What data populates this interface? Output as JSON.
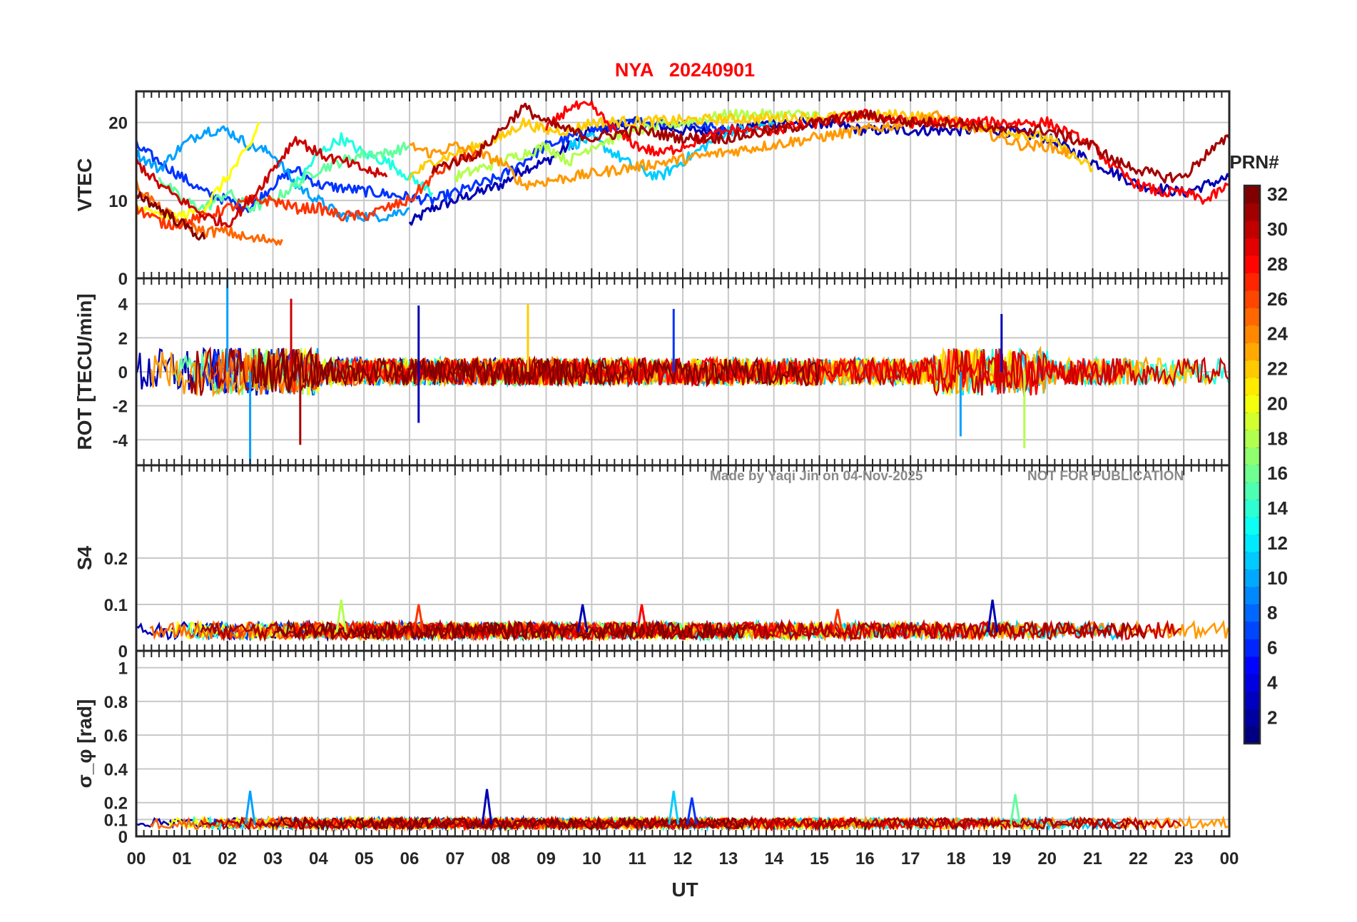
{
  "title": "NYA   20240901",
  "watermark": {
    "made_by": "Made by Yaqi Jin on 04-Nov-2025",
    "notice": "NOT FOR PUBLICATION"
  },
  "xaxis": {
    "label": "UT",
    "range": [
      0,
      24
    ],
    "ticks": [
      "00",
      "01",
      "02",
      "03",
      "04",
      "05",
      "06",
      "07",
      "08",
      "09",
      "10",
      "11",
      "12",
      "13",
      "14",
      "15",
      "16",
      "17",
      "18",
      "19",
      "20",
      "21",
      "22",
      "23",
      "00"
    ]
  },
  "colorbar": {
    "title": "PRN#",
    "colormap": "jet",
    "range": [
      1,
      32
    ],
    "tick_labels": [
      "2",
      "4",
      "6",
      "8",
      "10",
      "12",
      "14",
      "16",
      "18",
      "20",
      "22",
      "24",
      "26",
      "28",
      "30",
      "32"
    ],
    "tick_values": [
      2,
      4,
      6,
      8,
      10,
      12,
      14,
      16,
      18,
      20,
      22,
      24,
      26,
      28,
      30,
      32
    ]
  },
  "chart_data": [
    {
      "type": "line",
      "id": "vtec",
      "ylabel": "VTEC",
      "ylim": [
        0,
        24
      ],
      "yticks": [
        0,
        10,
        20
      ],
      "ytick_labels": [
        "0",
        "10",
        "20"
      ],
      "grid": true,
      "series": [
        {
          "prn": 2,
          "color": "#0000b3",
          "x": [
            6.0,
            6.5,
            7.0,
            7.5,
            8.0,
            8.5,
            9.0,
            9.5,
            10.0,
            11.0,
            12.0,
            13.0,
            14.0,
            15.0,
            16.0,
            17.0,
            18.0,
            19.0,
            20.0,
            21.0,
            22.0,
            23.0,
            24.0
          ],
          "y": [
            7,
            9,
            10,
            11,
            12,
            14,
            15,
            17,
            19,
            20,
            19,
            19,
            20,
            20,
            19,
            19,
            19,
            19,
            18,
            15,
            12,
            11,
            13
          ]
        },
        {
          "prn": 5,
          "color": "#0033ff",
          "x": [
            0.0,
            0.5,
            1.0,
            1.5,
            2.0,
            2.5,
            3.0,
            3.5,
            4.0,
            6.5,
            7.0,
            7.5,
            8.0,
            8.5,
            9.0,
            9.5,
            10.0,
            11.0,
            12.0,
            13.0
          ],
          "y": [
            17,
            15,
            13,
            11,
            10,
            9,
            12,
            14,
            12,
            10,
            11,
            12,
            13,
            15,
            17,
            18,
            19,
            20,
            20,
            19
          ]
        },
        {
          "prn": 9,
          "color": "#00a0ff",
          "x": [
            0.0,
            0.5,
            1.0,
            1.5,
            2.0,
            2.5,
            3.0,
            3.5,
            4.0,
            4.5,
            5.0,
            5.5,
            6.0
          ],
          "y": [
            16,
            14,
            17,
            19,
            19,
            17,
            16,
            12,
            10,
            8,
            8,
            8,
            9
          ]
        },
        {
          "prn": 11,
          "color": "#00ccff",
          "x": [
            9.5,
            10.0,
            10.5,
            11.0,
            11.5,
            12.0,
            12.5,
            13.0,
            13.5,
            14.0
          ],
          "y": [
            17,
            18,
            16,
            14,
            13,
            15,
            17,
            19,
            19,
            20
          ]
        },
        {
          "prn": 13,
          "color": "#1effe1",
          "x": [
            3.5,
            4.0,
            4.5,
            5.0,
            5.5,
            6.0,
            6.5
          ],
          "y": [
            12,
            16,
            18,
            16,
            15,
            13,
            11
          ]
        },
        {
          "prn": 15,
          "color": "#60ff9f",
          "x": [
            0.5,
            1.0,
            1.5,
            2.0,
            2.5,
            3.0,
            3.5,
            4.0,
            4.5,
            5.0,
            5.5,
            6.0
          ],
          "y": [
            13,
            10,
            9,
            11,
            9,
            10,
            12,
            14,
            15,
            16,
            16,
            17
          ]
        },
        {
          "prn": 18,
          "color": "#b3ff4c",
          "x": [
            7.0,
            7.5,
            8.0,
            8.5,
            9.0,
            9.5,
            10.0,
            11.0,
            12.0,
            13.0,
            14.0,
            15.0
          ],
          "y": [
            13,
            14,
            15,
            16,
            17,
            15,
            17,
            19,
            20,
            21,
            21,
            21
          ]
        },
        {
          "prn": 20,
          "color": "#ffff00",
          "x": [
            0.0,
            0.5,
            1.0,
            1.5,
            2.0,
            2.5,
            2.7
          ],
          "y": [
            9,
            8,
            8,
            9,
            13,
            17,
            20
          ]
        },
        {
          "prn": 22,
          "color": "#ffcc00",
          "x": [
            6.0,
            6.5,
            7.0,
            7.5,
            8.0,
            8.5,
            9.0,
            9.5,
            10.0,
            17.0,
            18.0,
            19.0,
            20.0,
            21.0
          ],
          "y": [
            13,
            15,
            16,
            17,
            18,
            20,
            19,
            19,
            20,
            21,
            20,
            19,
            18,
            14
          ]
        },
        {
          "prn": 24,
          "color": "#ff9900",
          "x": [
            6.0,
            6.5,
            7.0,
            7.5,
            8.0,
            8.5,
            17.0,
            17.5,
            18.0,
            18.5,
            19.0,
            19.5,
            20.0,
            20.5
          ],
          "y": [
            17,
            16,
            17,
            16,
            15,
            12,
            20,
            21,
            20,
            19,
            18,
            17,
            17,
            16
          ]
        },
        {
          "prn": 26,
          "color": "#ff6600",
          "x": [
            0.0,
            0.5,
            1.0,
            1.5,
            2.0,
            2.5,
            3.0,
            3.2
          ],
          "y": [
            12,
            9,
            7,
            6,
            6,
            5,
            5,
            5
          ]
        },
        {
          "prn": 27,
          "color": "#ff3300",
          "x": [
            0.0,
            0.3,
            0.6,
            1.0,
            1.5,
            2.0,
            2.5,
            3.0,
            3.5,
            4.0,
            4.5,
            5.0,
            5.5,
            6.0,
            6.5,
            7.0,
            7.5
          ],
          "y": [
            9,
            8,
            7,
            7,
            8,
            9,
            10,
            10,
            9,
            9,
            8,
            8,
            9,
            10,
            13,
            15,
            16
          ]
        },
        {
          "prn": 28,
          "color": "#ff0000",
          "x": [
            9.0,
            9.5,
            10.0,
            10.5,
            11.0,
            11.5,
            12.0,
            13.0,
            14.0,
            15.0,
            16.0,
            17.0,
            20.0,
            21.0,
            21.5,
            22.0,
            22.5,
            23.0,
            23.5,
            24.0
          ],
          "y": [
            19,
            22,
            22,
            19,
            17,
            16,
            17,
            19,
            19,
            20,
            21,
            20,
            20,
            17,
            14,
            12,
            11,
            11,
            10,
            12
          ]
        },
        {
          "prn": 30,
          "color": "#cc0000",
          "x": [
            0.0,
            0.5,
            1.0,
            1.5,
            2.0,
            2.5,
            3.0,
            3.5,
            4.0,
            4.5,
            5.0,
            5.5
          ],
          "y": [
            15,
            12,
            10,
            8,
            7,
            10,
            14,
            18,
            16,
            15,
            14,
            13
          ]
        },
        {
          "prn": 31,
          "color": "#a30000",
          "x": [
            6.5,
            7.0,
            7.5,
            8.0,
            8.5,
            9.0,
            9.5,
            10.0,
            11.0,
            12.0,
            13.0,
            14.0,
            15.0,
            16.0,
            17.0,
            18.0,
            19.0,
            20.0,
            21.0,
            21.5,
            22.0,
            22.5,
            23.0,
            23.5,
            24.0
          ],
          "y": [
            14,
            15,
            16,
            19,
            22,
            20,
            19,
            18,
            19,
            18,
            18,
            19,
            20,
            21,
            20,
            20,
            19,
            19,
            17,
            15,
            14,
            13,
            13,
            16,
            18
          ]
        },
        {
          "prn": 32,
          "color": "#800000",
          "x": [
            0.0,
            0.5,
            1.0,
            1.5
          ],
          "y": [
            11,
            9,
            7,
            5
          ]
        }
      ]
    },
    {
      "type": "line",
      "id": "rot",
      "ylabel": "ROT [TECU/min]",
      "ylim": [
        -5.5,
        5.5
      ],
      "yticks": [
        -4,
        -2,
        0,
        2,
        4
      ],
      "ytick_labels": [
        "-4",
        "-2",
        "0",
        "2",
        "4"
      ],
      "grid": true,
      "series_note": "dense noisy traces around 0 for each PRN",
      "spikes": [
        {
          "x": 2.0,
          "y": 5.5,
          "color": "#00a0ff"
        },
        {
          "x": 2.5,
          "y": -5.5,
          "color": "#00a0ff"
        },
        {
          "x": 3.4,
          "y": 4.3,
          "color": "#cc0000"
        },
        {
          "x": 3.6,
          "y": -4.3,
          "color": "#a30000"
        },
        {
          "x": 6.2,
          "y": 3.9,
          "color": "#0000b3"
        },
        {
          "x": 6.2,
          "y": -3.0,
          "color": "#0000b3"
        },
        {
          "x": 8.6,
          "y": 4.0,
          "color": "#ffcc00"
        },
        {
          "x": 11.8,
          "y": 3.7,
          "color": "#0033ff"
        },
        {
          "x": 18.1,
          "y": -3.8,
          "color": "#00a0ff"
        },
        {
          "x": 19.0,
          "y": 3.4,
          "color": "#0000b3"
        },
        {
          "x": 19.5,
          "y": -4.5,
          "color": "#b3ff4c"
        }
      ]
    },
    {
      "type": "line",
      "id": "s4",
      "ylabel": "S4",
      "ylim": [
        0,
        0.4
      ],
      "yticks": [
        0,
        0.1,
        0.2
      ],
      "ytick_labels": [
        "0",
        "0.1",
        "0.2"
      ],
      "grid": true,
      "baseline": 0.04,
      "peaks": [
        {
          "x": 4.5,
          "y": 0.11,
          "color": "#b3ff4c"
        },
        {
          "x": 6.2,
          "y": 0.1,
          "color": "#ff3300"
        },
        {
          "x": 9.8,
          "y": 0.1,
          "color": "#0000b3"
        },
        {
          "x": 11.1,
          "y": 0.1,
          "color": "#ff0000"
        },
        {
          "x": 15.4,
          "y": 0.09,
          "color": "#ff3300"
        },
        {
          "x": 18.8,
          "y": 0.11,
          "color": "#0000b3"
        }
      ]
    },
    {
      "type": "line",
      "id": "sigma_phi",
      "ylabel": "σ_φ [rad]",
      "ylim": [
        0,
        1.1
      ],
      "yticks": [
        0,
        0.1,
        0.2,
        0.4,
        0.6,
        0.8,
        1
      ],
      "ytick_labels": [
        "0",
        "0.1",
        "0.2",
        "0.4",
        "0.6",
        "0.8",
        "1"
      ],
      "grid": true,
      "baseline": 0.07,
      "peaks": [
        {
          "x": 2.5,
          "y": 0.27,
          "color": "#00a0ff"
        },
        {
          "x": 7.7,
          "y": 0.28,
          "color": "#0000b3"
        },
        {
          "x": 11.8,
          "y": 0.27,
          "color": "#00ccff"
        },
        {
          "x": 12.2,
          "y": 0.23,
          "color": "#0033ff"
        },
        {
          "x": 19.3,
          "y": 0.25,
          "color": "#60ff9f"
        }
      ]
    }
  ]
}
